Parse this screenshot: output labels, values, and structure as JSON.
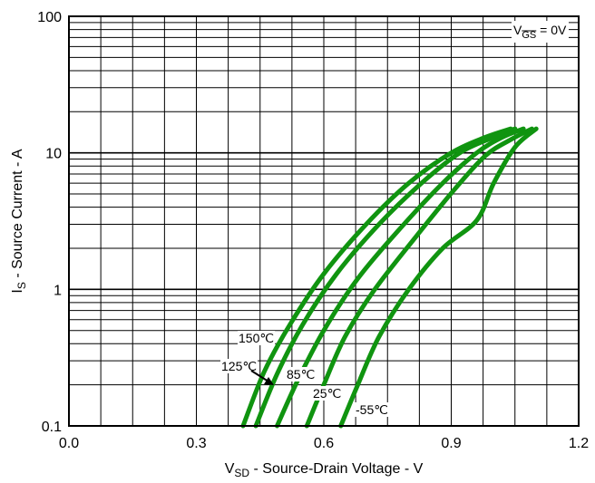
{
  "chart_data": {
    "type": "line",
    "title": "",
    "xlabel": {
      "main": "V",
      "sub": "SD",
      "rest": " - Source-Drain Voltage - V"
    },
    "ylabel": {
      "main": "I",
      "sub": "S",
      "rest": " - Source Current - A"
    },
    "xlim": [
      0.0,
      1.2
    ],
    "ylim": [
      0.1,
      100
    ],
    "yscale": "log",
    "grid": true,
    "x_ticks": [
      "0.0",
      "0.3",
      "0.6",
      "0.9",
      "1.2"
    ],
    "y_ticks": [
      "0.1",
      "1",
      "10",
      "100"
    ],
    "condition": {
      "main": "V",
      "sub": "GS",
      "rest": " = 0V"
    },
    "line_color": "#109410",
    "series": [
      {
        "name": "150℃",
        "x": [
          0.41,
          0.46,
          0.52,
          0.6,
          0.7,
          0.8,
          0.9,
          0.98,
          1.04
        ],
        "y": [
          0.1,
          0.25,
          0.55,
          1.3,
          3.0,
          6.0,
          10.0,
          13.0,
          15.0
        ]
      },
      {
        "name": "125℃",
        "x": [
          0.44,
          0.49,
          0.55,
          0.63,
          0.73,
          0.83,
          0.92,
          1.0,
          1.05
        ],
        "y": [
          0.1,
          0.24,
          0.55,
          1.3,
          3.0,
          6.0,
          10.0,
          13.0,
          15.0
        ]
      },
      {
        "name": "85℃",
        "x": [
          0.49,
          0.54,
          0.6,
          0.68,
          0.78,
          0.88,
          0.96,
          1.02,
          1.07
        ],
        "y": [
          0.1,
          0.22,
          0.5,
          1.2,
          2.8,
          6.0,
          10.0,
          13.0,
          15.0
        ]
      },
      {
        "name": "25℃",
        "x": [
          0.56,
          0.6,
          0.65,
          0.72,
          0.82,
          0.91,
          0.98,
          1.04,
          1.09
        ],
        "y": [
          0.1,
          0.2,
          0.45,
          1.0,
          2.5,
          5.5,
          9.5,
          12.5,
          15.0
        ]
      },
      {
        "name": "-55℃",
        "x": [
          0.64,
          0.68,
          0.73,
          0.8,
          0.88,
          0.96,
          1.0,
          1.05,
          1.1
        ],
        "y": [
          0.1,
          0.2,
          0.45,
          1.0,
          2.0,
          3.2,
          6.0,
          11.0,
          15.0
        ]
      }
    ]
  }
}
